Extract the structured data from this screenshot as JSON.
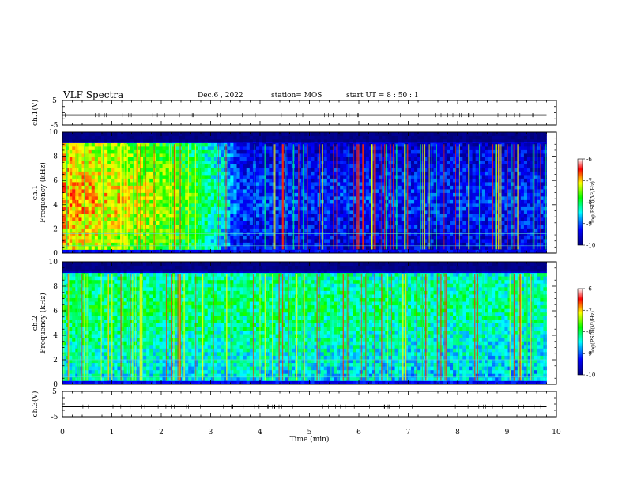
{
  "header": {
    "title": "VLF Spectra",
    "date": "Dec.6  , 2022",
    "station": "station= MOS",
    "start_ut": "start  UT  =   8  :  50 :  1"
  },
  "chart_data": [
    {
      "type": "line",
      "panel": "ch1-waveform",
      "ylabel": "ch.1(V)",
      "ylim": [
        -5,
        5
      ],
      "yticks": [
        5,
        -5
      ],
      "trace_level": -1,
      "x": [
        0,
        10
      ],
      "y": [
        -1,
        -1
      ]
    },
    {
      "type": "heatmap",
      "panel": "ch1-spectrogram",
      "ylabel": "ch.1\nFrequency (kHz)",
      "ylabel_line1": "ch.1",
      "ylabel_line2": "Frequency (kHz)",
      "xlim": [
        0,
        10
      ],
      "ylim": [
        0,
        10
      ],
      "yticks": [
        0,
        2,
        4,
        6,
        8,
        10
      ],
      "data_end_min": 9.8,
      "colorbar": {
        "label": "log(PSD)(V²/Hz)",
        "ticks": [
          -6,
          -7,
          -8,
          -9,
          -10
        ],
        "range": [
          -10,
          -6
        ],
        "colors": [
          "#00007f",
          "#0000ff",
          "#00ffff",
          "#00ff00",
          "#ffff00",
          "#ff0000",
          "#ffffff"
        ]
      },
      "intensity_profile": [
        {
          "t": 0.0,
          "level": -6.8
        },
        {
          "t": 1.5,
          "level": -7.2
        },
        {
          "t": 2.5,
          "level": -7.6
        },
        {
          "t": 3.2,
          "level": -8.3
        },
        {
          "t": 3.6,
          "level": -9.1
        },
        {
          "t": 5.0,
          "level": -9.2
        },
        {
          "t": 9.8,
          "level": -9.2
        }
      ]
    },
    {
      "type": "heatmap",
      "panel": "ch2-spectrogram",
      "ylabel": "ch.2\nFrequency (kHz)",
      "ylabel_line1": "ch.2",
      "ylabel_line2": "Frequency (kHz)",
      "xlim": [
        0,
        10
      ],
      "ylim": [
        0,
        10
      ],
      "yticks": [
        0,
        2,
        4,
        6,
        8,
        10
      ],
      "data_end_min": 9.8,
      "colorbar": {
        "label": "log(PSD)(V²/Hz)",
        "ticks": [
          -6,
          -7,
          -8,
          -9,
          -10
        ],
        "range": [
          -10,
          -6
        ],
        "colors": [
          "#00007f",
          "#0000ff",
          "#00ffff",
          "#00ff00",
          "#ffff00",
          "#ff0000",
          "#ffffff"
        ]
      },
      "intensity_profile": [
        {
          "t": 0.0,
          "level": -8.0
        },
        {
          "t": 9.8,
          "level": -8.2
        }
      ]
    },
    {
      "type": "line",
      "panel": "ch3-waveform",
      "ylabel": "ch.3(V)",
      "ylim": [
        -5,
        5
      ],
      "yticks": [
        5,
        -5
      ],
      "trace_level": -1,
      "x": [
        0,
        10
      ],
      "y": [
        -1,
        -1
      ]
    }
  ],
  "xaxis": {
    "label": "Time (min)",
    "ticks": [
      0,
      1,
      2,
      3,
      4,
      5,
      6,
      7,
      8,
      9,
      10
    ]
  }
}
